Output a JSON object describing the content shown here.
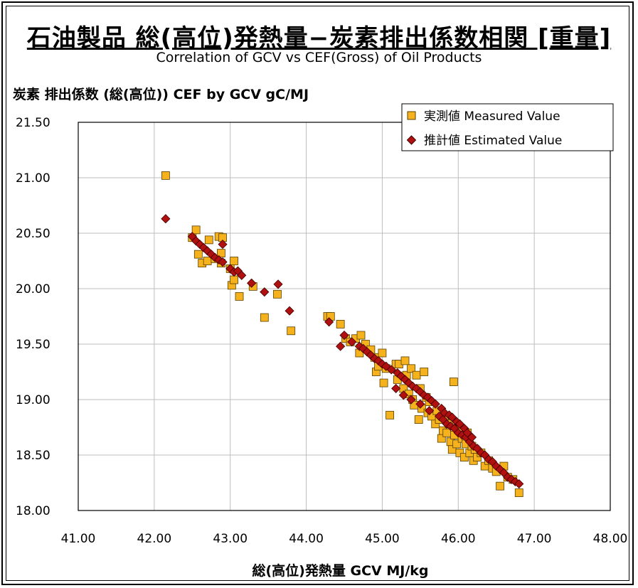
{
  "title": "石油製品 総(高位)発熱量−炭素排出係数相関 [重量]",
  "subtitle": "Correlation of GCV vs CEF(Gross) of Oil Products",
  "colors": {
    "measured_fill": "#f5b21c",
    "measured_edge": "#5a4000",
    "estimated_fill": "#b01010",
    "estimated_edge": "#400000",
    "grid": "#bdbdbd"
  },
  "chart_data": {
    "type": "scatter",
    "ylabel": "炭素 排出係数 (総(高位)) CEF by GCV gC/MJ",
    "xlabel": "総(高位)発熱量 GCV MJ/kg",
    "xlim": [
      41.0,
      48.0
    ],
    "ylim": [
      18.0,
      21.5
    ],
    "x_ticks": [
      "41.00",
      "42.00",
      "43.00",
      "44.00",
      "45.00",
      "46.00",
      "47.00",
      "48.00"
    ],
    "y_ticks": [
      "18.00",
      "18.50",
      "19.00",
      "19.50",
      "20.00",
      "20.50",
      "21.00",
      "21.50"
    ],
    "grid": true,
    "legend_position": "top-right",
    "series": [
      {
        "name": "実測値 Measured Value",
        "marker": "square",
        "points": [
          [
            42.15,
            21.02
          ],
          [
            42.5,
            20.46
          ],
          [
            42.55,
            20.53
          ],
          [
            42.58,
            20.31
          ],
          [
            42.63,
            20.23
          ],
          [
            42.7,
            20.25
          ],
          [
            42.72,
            20.44
          ],
          [
            42.8,
            20.27
          ],
          [
            42.85,
            20.47
          ],
          [
            42.88,
            20.32
          ],
          [
            42.9,
            20.46
          ],
          [
            42.88,
            20.23
          ],
          [
            43.0,
            20.18
          ],
          [
            43.05,
            20.25
          ],
          [
            43.02,
            20.03
          ],
          [
            43.05,
            20.08
          ],
          [
            43.12,
            19.93
          ],
          [
            43.3,
            20.02
          ],
          [
            43.45,
            19.74
          ],
          [
            43.62,
            19.95
          ],
          [
            43.8,
            19.62
          ],
          [
            44.28,
            19.75
          ],
          [
            44.32,
            19.75
          ],
          [
            44.45,
            19.68
          ],
          [
            44.52,
            19.55
          ],
          [
            44.58,
            19.52
          ],
          [
            44.65,
            19.55
          ],
          [
            44.7,
            19.42
          ],
          [
            44.72,
            19.58
          ],
          [
            44.78,
            19.5
          ],
          [
            44.85,
            19.45
          ],
          [
            44.9,
            19.38
          ],
          [
            44.92,
            19.25
          ],
          [
            44.95,
            19.3
          ],
          [
            45.0,
            19.42
          ],
          [
            45.05,
            19.28
          ],
          [
            45.02,
            19.15
          ],
          [
            45.1,
            18.86
          ],
          [
            45.18,
            19.32
          ],
          [
            45.2,
            19.18
          ],
          [
            45.22,
            19.32
          ],
          [
            45.28,
            19.1
          ],
          [
            45.3,
            19.35
          ],
          [
            45.32,
            19.22
          ],
          [
            45.35,
            19.05
          ],
          [
            45.38,
            19.28
          ],
          [
            45.4,
            19.0
          ],
          [
            45.42,
            18.95
          ],
          [
            45.45,
            19.22
          ],
          [
            45.48,
            18.82
          ],
          [
            45.5,
            19.1
          ],
          [
            45.52,
            18.92
          ],
          [
            45.55,
            19.25
          ],
          [
            45.58,
            19.02
          ],
          [
            45.6,
            18.88
          ],
          [
            45.62,
            18.98
          ],
          [
            45.65,
            18.85
          ],
          [
            45.7,
            18.78
          ],
          [
            45.72,
            18.9
          ],
          [
            45.75,
            18.82
          ],
          [
            45.78,
            18.65
          ],
          [
            45.8,
            18.72
          ],
          [
            45.82,
            18.85
          ],
          [
            45.85,
            18.7
          ],
          [
            45.88,
            18.78
          ],
          [
            45.9,
            18.62
          ],
          [
            45.92,
            18.55
          ],
          [
            45.94,
            19.16
          ],
          [
            45.95,
            18.68
          ],
          [
            45.98,
            18.6
          ],
          [
            46.0,
            18.75
          ],
          [
            46.02,
            18.52
          ],
          [
            46.05,
            18.65
          ],
          [
            46.08,
            18.48
          ],
          [
            46.1,
            18.6
          ],
          [
            46.12,
            18.7
          ],
          [
            46.15,
            18.52
          ],
          [
            46.18,
            18.58
          ],
          [
            46.2,
            18.45
          ],
          [
            46.22,
            18.55
          ],
          [
            46.25,
            18.48
          ],
          [
            46.3,
            18.52
          ],
          [
            46.35,
            18.4
          ],
          [
            46.4,
            18.45
          ],
          [
            46.45,
            18.38
          ],
          [
            46.5,
            18.35
          ],
          [
            46.55,
            18.22
          ],
          [
            46.6,
            18.4
          ],
          [
            46.65,
            18.3
          ],
          [
            46.72,
            18.28
          ],
          [
            46.8,
            18.16
          ]
        ]
      },
      {
        "name": "推計値 Estimated Value",
        "marker": "diamond",
        "points": [
          [
            42.15,
            20.63
          ],
          [
            42.5,
            20.47
          ],
          [
            42.55,
            20.43
          ],
          [
            42.6,
            20.4
          ],
          [
            42.65,
            20.37
          ],
          [
            42.7,
            20.34
          ],
          [
            42.75,
            20.31
          ],
          [
            42.8,
            20.28
          ],
          [
            42.85,
            20.26
          ],
          [
            42.9,
            20.4
          ],
          [
            42.9,
            20.24
          ],
          [
            43.0,
            20.18
          ],
          [
            43.05,
            20.15
          ],
          [
            43.1,
            20.16
          ],
          [
            43.15,
            20.12
          ],
          [
            43.28,
            20.05
          ],
          [
            43.45,
            19.97
          ],
          [
            43.63,
            20.04
          ],
          [
            43.78,
            19.8
          ],
          [
            44.3,
            19.7
          ],
          [
            44.45,
            19.48
          ],
          [
            44.5,
            19.58
          ],
          [
            44.6,
            19.52
          ],
          [
            44.7,
            19.48
          ],
          [
            44.75,
            19.46
          ],
          [
            44.8,
            19.43
          ],
          [
            44.85,
            19.4
          ],
          [
            44.9,
            19.37
          ],
          [
            44.95,
            19.35
          ],
          [
            45.0,
            19.32
          ],
          [
            45.05,
            19.3
          ],
          [
            45.12,
            19.27
          ],
          [
            45.18,
            19.1
          ],
          [
            45.2,
            19.24
          ],
          [
            45.25,
            19.21
          ],
          [
            45.28,
            19.04
          ],
          [
            45.3,
            19.18
          ],
          [
            45.35,
            19.15
          ],
          [
            45.38,
            19.0
          ],
          [
            45.4,
            19.12
          ],
          [
            45.45,
            19.1
          ],
          [
            45.5,
            18.96
          ],
          [
            45.5,
            19.07
          ],
          [
            45.55,
            19.04
          ],
          [
            45.6,
            19.02
          ],
          [
            45.62,
            18.9
          ],
          [
            45.65,
            18.99
          ],
          [
            45.7,
            18.96
          ],
          [
            45.75,
            18.85
          ],
          [
            45.78,
            18.92
          ],
          [
            45.8,
            18.82
          ],
          [
            45.82,
            18.88
          ],
          [
            45.85,
            18.78
          ],
          [
            45.88,
            18.86
          ],
          [
            45.9,
            18.76
          ],
          [
            45.92,
            18.84
          ],
          [
            45.95,
            18.74
          ],
          [
            45.98,
            18.8
          ],
          [
            46.0,
            18.7
          ],
          [
            46.02,
            18.78
          ],
          [
            46.05,
            18.68
          ],
          [
            46.08,
            18.74
          ],
          [
            46.1,
            18.66
          ],
          [
            46.12,
            18.7
          ],
          [
            46.15,
            18.62
          ],
          [
            46.18,
            18.66
          ],
          [
            46.2,
            18.58
          ],
          [
            46.25,
            18.56
          ],
          [
            46.3,
            18.52
          ],
          [
            46.35,
            18.5
          ],
          [
            46.4,
            18.46
          ],
          [
            46.45,
            18.44
          ],
          [
            46.5,
            18.4
          ],
          [
            46.55,
            18.37
          ],
          [
            46.6,
            18.34
          ],
          [
            46.65,
            18.3
          ],
          [
            46.7,
            18.28
          ],
          [
            46.75,
            18.26
          ],
          [
            46.8,
            18.24
          ]
        ]
      }
    ]
  }
}
